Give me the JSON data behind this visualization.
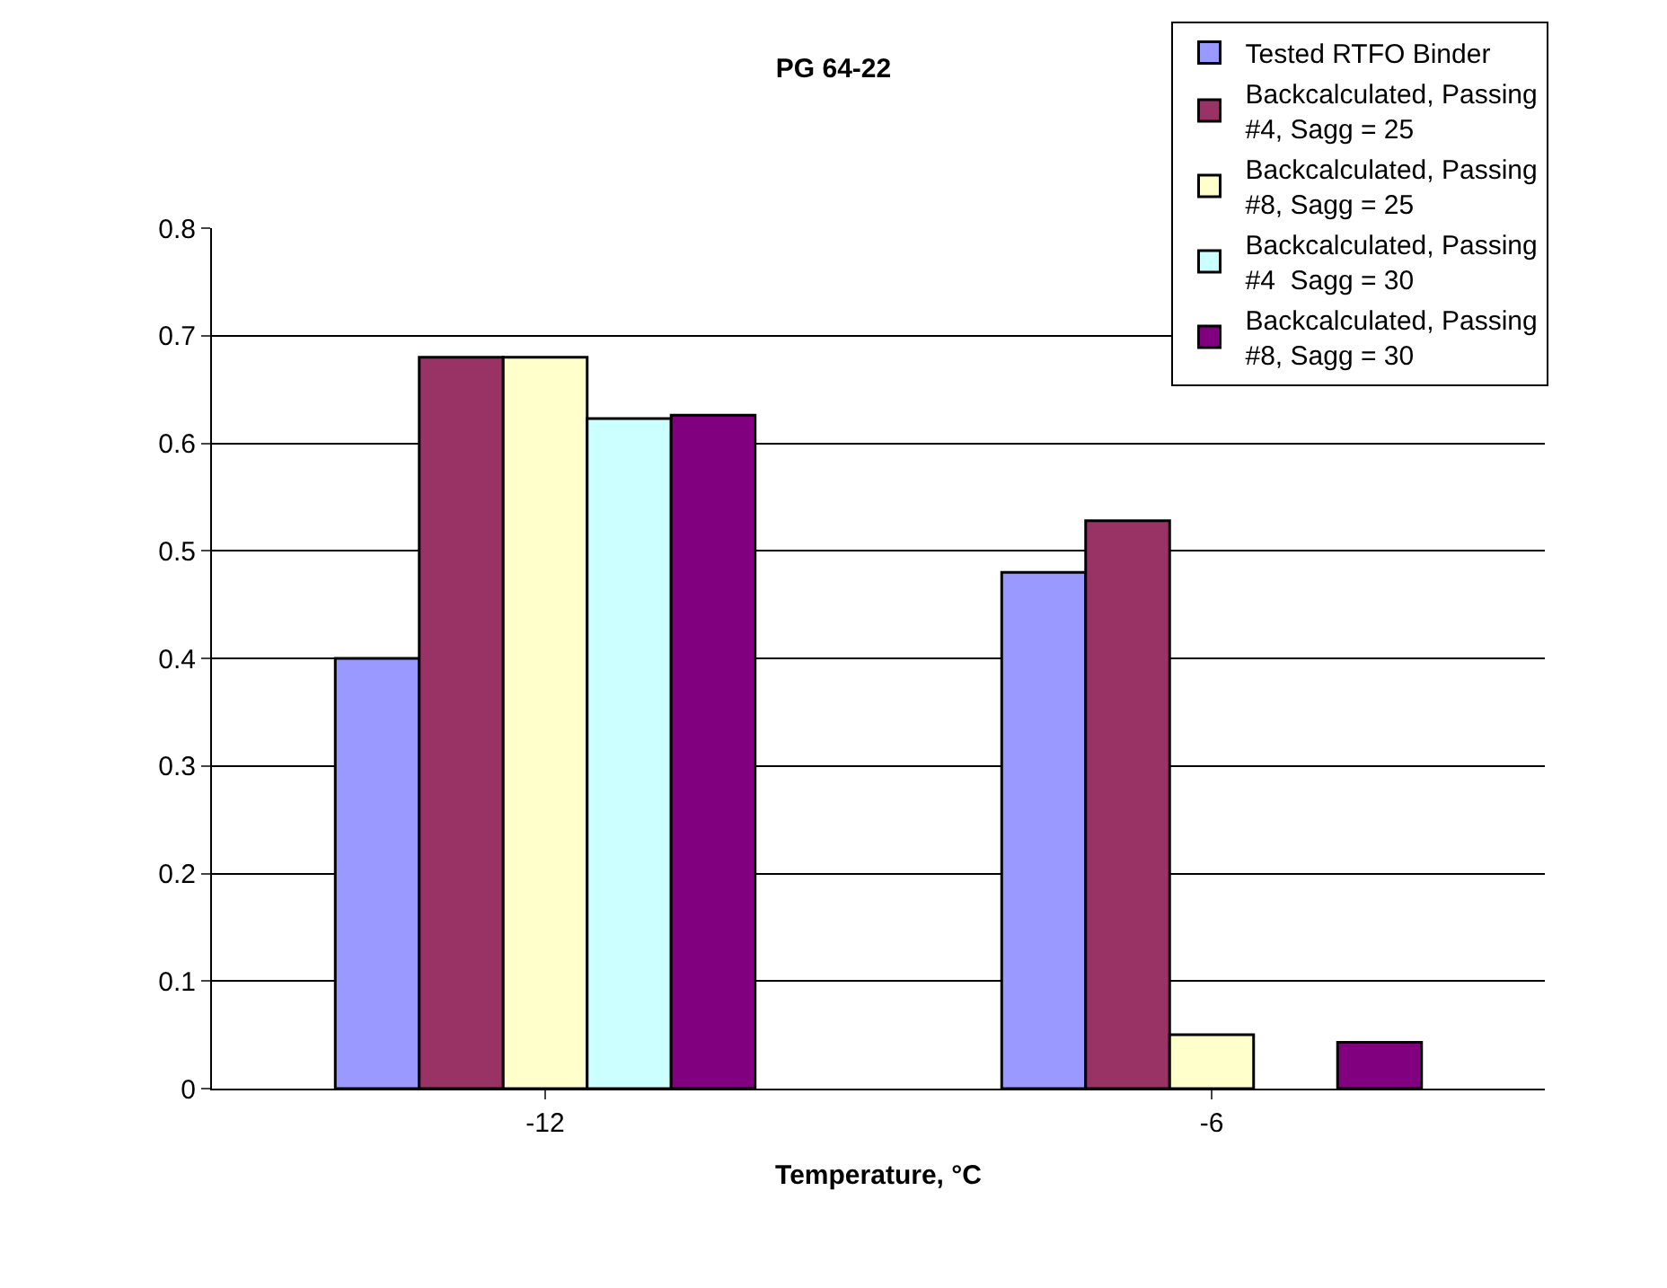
{
  "chart_data": {
    "type": "bar",
    "title": "PG 64-22",
    "xlabel": "Temperature, °C",
    "categories": [
      "-12",
      "-6"
    ],
    "series": [
      {
        "name": "Tested RTFO Binder",
        "color": "#9999ff",
        "values": [
          0.4,
          0.48
        ]
      },
      {
        "name": "Backcalculated, Passing #4, Sagg = 25",
        "color": "#993366",
        "values": [
          0.68,
          0.528
        ]
      },
      {
        "name": "Backcalculated, Passing #8, Sagg = 25",
        "color": "#ffffcc",
        "values": [
          0.68,
          0.05
        ]
      },
      {
        "name": "Backcalculated, Passing #4  Sagg = 30",
        "color": "#ccffff",
        "values": [
          0.623,
          null
        ]
      },
      {
        "name": "Backcalculated, Passing #8, Sagg = 30",
        "color": "#800080",
        "values": [
          0.626,
          0.043
        ]
      }
    ],
    "ylim": [
      0,
      0.8
    ],
    "yticks": [
      0,
      0.1,
      0.2,
      0.3,
      0.4,
      0.5,
      0.6,
      0.7,
      0.8
    ],
    "grid": "y",
    "legend": "top right"
  }
}
